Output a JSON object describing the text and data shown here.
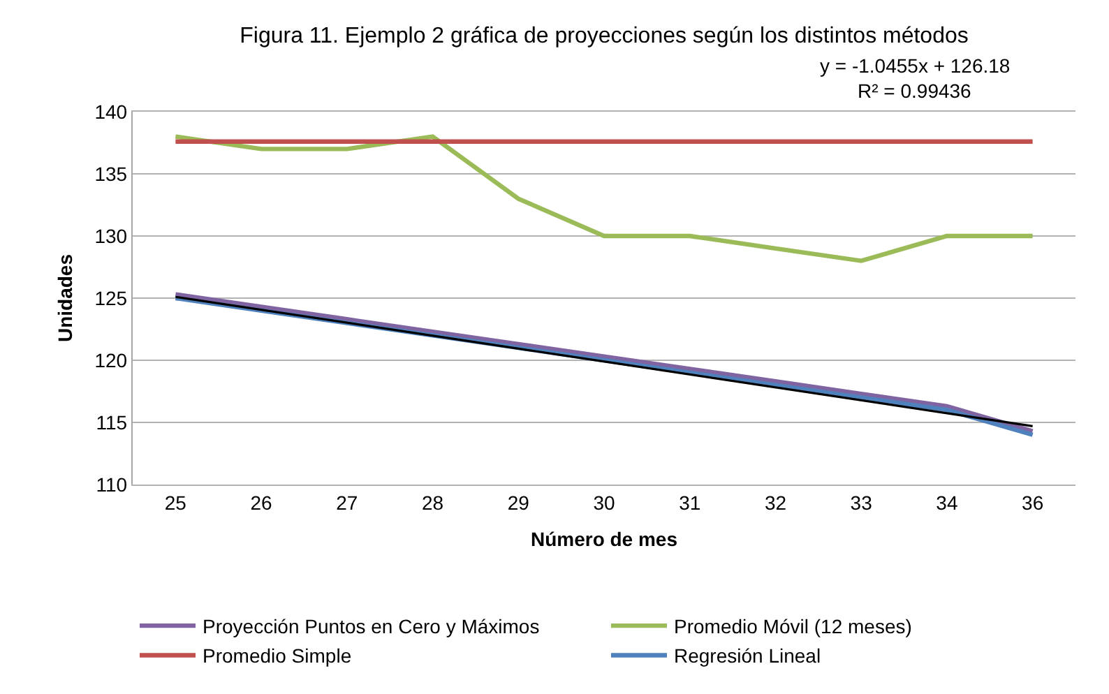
{
  "chart_data": {
    "type": "line",
    "title": "Figura 11. Ejemplo 2 gráfica de proyecciones según los distintos métodos",
    "xlabel": "Número de mes",
    "ylabel": "Unidades",
    "annotations": [
      "y = -1.0455x + 126.18",
      "R² = 0.99436"
    ],
    "categories": [
      "25",
      "26",
      "27",
      "28",
      "29",
      "30",
      "31",
      "32",
      "33",
      "34",
      "36"
    ],
    "series": [
      {
        "name": "Proyección Puntos en Cero y Máximos",
        "color": "#8064a2",
        "values": [
          125.3,
          124.3,
          123.3,
          122.3,
          121.3,
          120.3,
          119.3,
          118.3,
          117.3,
          116.3,
          114.3
        ]
      },
      {
        "name": "Promedio Móvil (12 meses)",
        "color": "#9bbb59",
        "values": [
          138,
          137,
          137,
          138,
          133,
          130,
          130,
          129,
          128,
          130,
          130
        ]
      },
      {
        "name": "Promedio Simple",
        "color": "#c0504d",
        "values": [
          137.6,
          137.6,
          137.6,
          137.6,
          137.6,
          137.6,
          137.6,
          137.6,
          137.6,
          137.6,
          137.6
        ]
      },
      {
        "name": "Regresión Lineal",
        "color": "#4f81bd",
        "values": [
          125.0,
          124.0,
          123.0,
          122.0,
          121.0,
          120.0,
          119.0,
          118.0,
          117.0,
          116.0,
          114.0
        ]
      },
      {
        "type": "line",
        "color": "#000000",
        "x": [
          "25",
          "36"
        ],
        "values": [
          125.1,
          114.7
        ]
      }
    ],
    "ylim": [
      110,
      140
    ],
    "yticks": [
      110,
      115,
      120,
      125,
      130,
      135,
      140
    ],
    "grid": "y",
    "legend": "bottom"
  }
}
